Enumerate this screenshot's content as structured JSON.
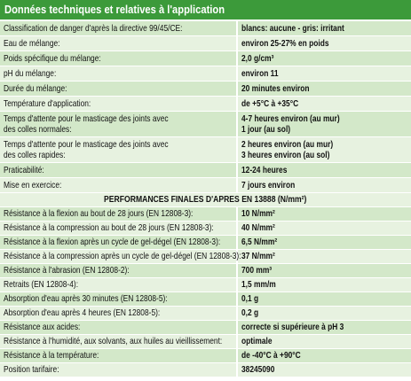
{
  "header": {
    "title": "Données techniques et relatives à l'application"
  },
  "rows": [
    [
      [
        "Classification de danger d'après la directive 99/45/CE:"
      ],
      [
        "blancs: aucune - gris: irritant"
      ]
    ],
    [
      [
        "Eau de mélange:"
      ],
      [
        "environ 25-27% en poids"
      ]
    ],
    [
      [
        "Poids spécifique du mélange:"
      ],
      [
        "2,0 g/cm³"
      ]
    ],
    [
      [
        "pH du mélange:"
      ],
      [
        "environ 11"
      ]
    ],
    [
      [
        "Durée du mélange:"
      ],
      [
        "20 minutes environ"
      ]
    ],
    [
      [
        "Température d'application:"
      ],
      [
        "de +5°C à +35°C"
      ]
    ],
    [
      [
        "Temps d'attente pour le masticage des joints avec",
        "des colles normales:"
      ],
      [
        "4-7 heures environ (au mur)",
        "1 jour (au sol)"
      ]
    ],
    [
      [
        "Temps d'attente pour le masticage des joints avec",
        "des colles rapides:"
      ],
      [
        "2 heures environ (au mur)",
        "3 heures environ (au sol)"
      ]
    ],
    [
      [
        "Praticabilité:"
      ],
      [
        "12-24 heures"
      ]
    ],
    [
      [
        "Mise en exercice:"
      ],
      [
        "7 jours environ"
      ]
    ]
  ],
  "section": "PERFORMANCES FINALES D'APRES EN 13888 (N/mm²)",
  "performance_rows": [
    [
      [
        "Résistance à la flexion au bout de 28 jours (EN 12808-3):"
      ],
      [
        "10 N/mm²"
      ]
    ],
    [
      [
        "Résistance à la compression au bout de 28 jours (EN 12808-3):"
      ],
      [
        "40 N/mm²"
      ]
    ],
    [
      [
        "Résistance à la flexion après un cycle de gel-dégel (EN 12808-3):"
      ],
      [
        "6,5 N/mm²"
      ]
    ],
    [
      [
        "Résistance à la compression après un cycle de gel-dégel (EN 12808-3):"
      ],
      [
        "37 N/mm²"
      ]
    ],
    [
      [
        "Résistance à l'abrasion (EN 12808-2):"
      ],
      [
        "700 mm³"
      ]
    ],
    [
      [
        "Retraits (EN 12808-4):"
      ],
      [
        "1,5 mm/m"
      ]
    ],
    [
      [
        "Absorption d'eau après 30 minutes (EN 12808-5):"
      ],
      [
        "0,1 g"
      ]
    ],
    [
      [
        "Absorption d'eau après 4 heures (EN 12808-5):"
      ],
      [
        "0,2 g"
      ]
    ],
    [
      [
        "Résistance aux acides:"
      ],
      [
        "correcte si supérieure à pH 3"
      ]
    ],
    [
      [
        "Résistance à l'humidité, aux solvants, aux huiles au vieillissement:"
      ],
      [
        "optimale"
      ]
    ],
    [
      [
        "Résistance à la température:"
      ],
      [
        "de -40°C à +90°C"
      ]
    ],
    [
      [
        "Position tarifaire:"
      ],
      [
        "38245090"
      ]
    ]
  ]
}
